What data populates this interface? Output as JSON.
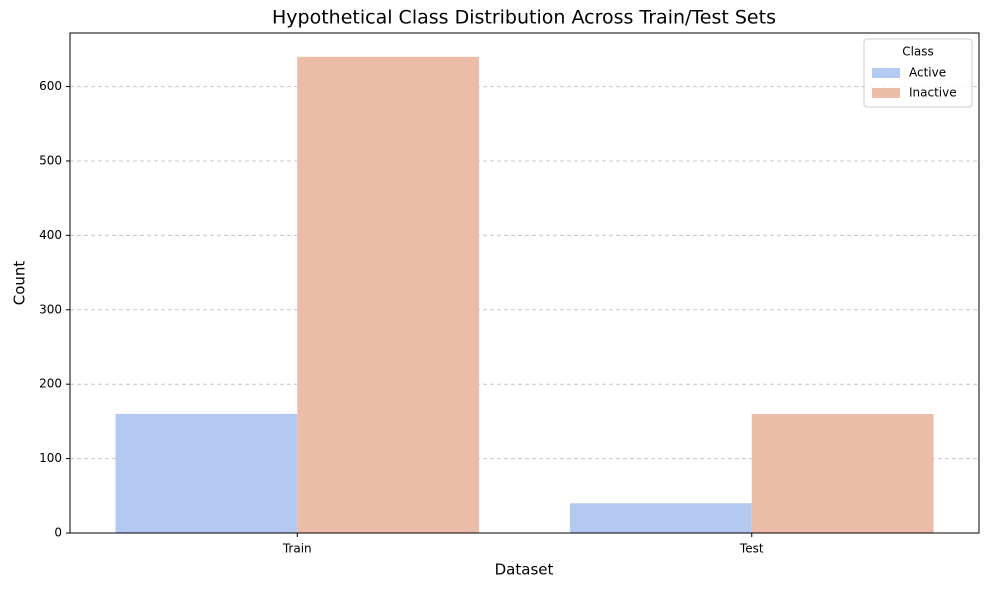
{
  "chart_data": {
    "type": "bar",
    "title": "Hypothetical Class Distribution Across Train/Test Sets",
    "x_label": "Dataset",
    "y_label": "Count",
    "categories": [
      "Train",
      "Test"
    ],
    "series": [
      {
        "name": "Active",
        "color": "#b4c9f2",
        "values": [
          160,
          40
        ]
      },
      {
        "name": "Inactive",
        "color": "#ebbca8",
        "values": [
          640,
          160
        ]
      }
    ],
    "legend_title": "Class",
    "legend_position": "upper right",
    "ylim": [
      0,
      672
    ],
    "yticks": [
      0,
      100,
      200,
      300,
      400,
      500,
      600
    ],
    "grid": true
  }
}
